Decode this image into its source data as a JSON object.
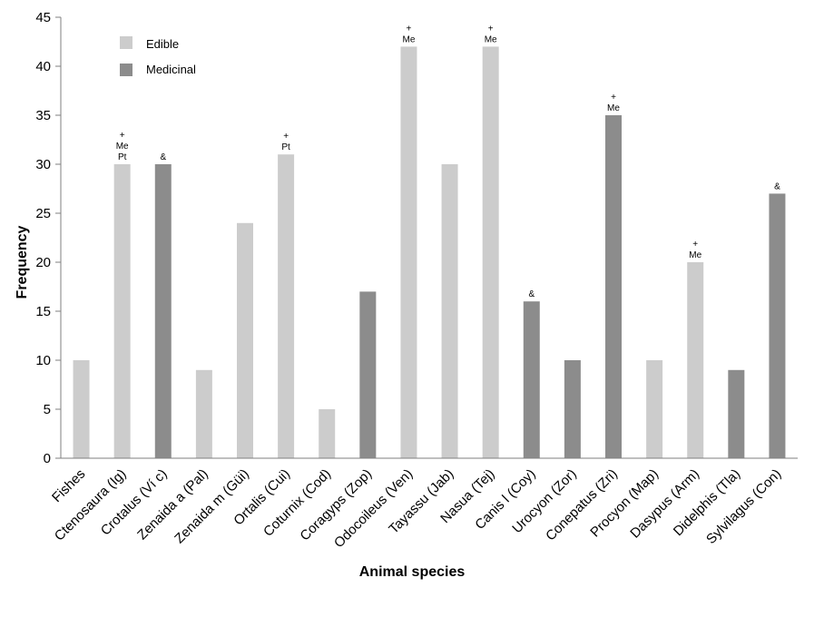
{
  "chart_data": {
    "type": "bar",
    "title": "",
    "xlabel": "Animal species",
    "ylabel": "Frequency",
    "ylim": [
      0,
      45
    ],
    "yticks": [
      "0",
      "5",
      "10",
      "15",
      "20",
      "25",
      "30",
      "35",
      "40",
      "45"
    ],
    "grid": false,
    "legend_position": "top-left",
    "legend": [
      {
        "name": "Edible",
        "color": "#cccccc"
      },
      {
        "name": "Medicinal",
        "color": "#8c8c8c"
      }
    ],
    "categories": [
      "Fishes",
      "Ctenosaura (Ig)",
      "Crotalus (Ví c)",
      "Zenaida a (Pal)",
      "Zenaida m (Güi)",
      "Ortalis (Cui)",
      "Coturnix (Cod)",
      "Coragyps (Zop)",
      "Odocoileus (Ven)",
      "Tayassu (Jab)",
      "Nasua (Tej)",
      "Canis l (Coy)",
      "Urocyon (Zor)",
      "Conepatus (Zri)",
      "Procyon (Map)",
      "Dasypus (Arm)",
      "Didelphis (Tla)",
      "Sylvilagus (Con)"
    ],
    "values": [
      10,
      30,
      30,
      9,
      24,
      31,
      5,
      17,
      42,
      30,
      42,
      16,
      10,
      35,
      10,
      20,
      9,
      27
    ],
    "use": [
      "Edible",
      "Edible",
      "Medicinal",
      "Edible",
      "Edible",
      "Edible",
      "Edible",
      "Medicinal",
      "Edible",
      "Edible",
      "Edible",
      "Medicinal",
      "Medicinal",
      "Medicinal",
      "Edible",
      "Edible",
      "Medicinal",
      "Medicinal"
    ],
    "annotations": [
      [],
      [
        "+",
        "Me",
        "Pt"
      ],
      [
        "&"
      ],
      [],
      [],
      [
        "+",
        "Pt"
      ],
      [],
      [],
      [
        "+",
        "Me"
      ],
      [],
      [
        "+",
        "Me"
      ],
      [
        "&"
      ],
      [],
      [
        "+",
        "Me"
      ],
      [],
      [
        "+",
        "Me"
      ],
      [],
      [
        "&"
      ]
    ]
  }
}
